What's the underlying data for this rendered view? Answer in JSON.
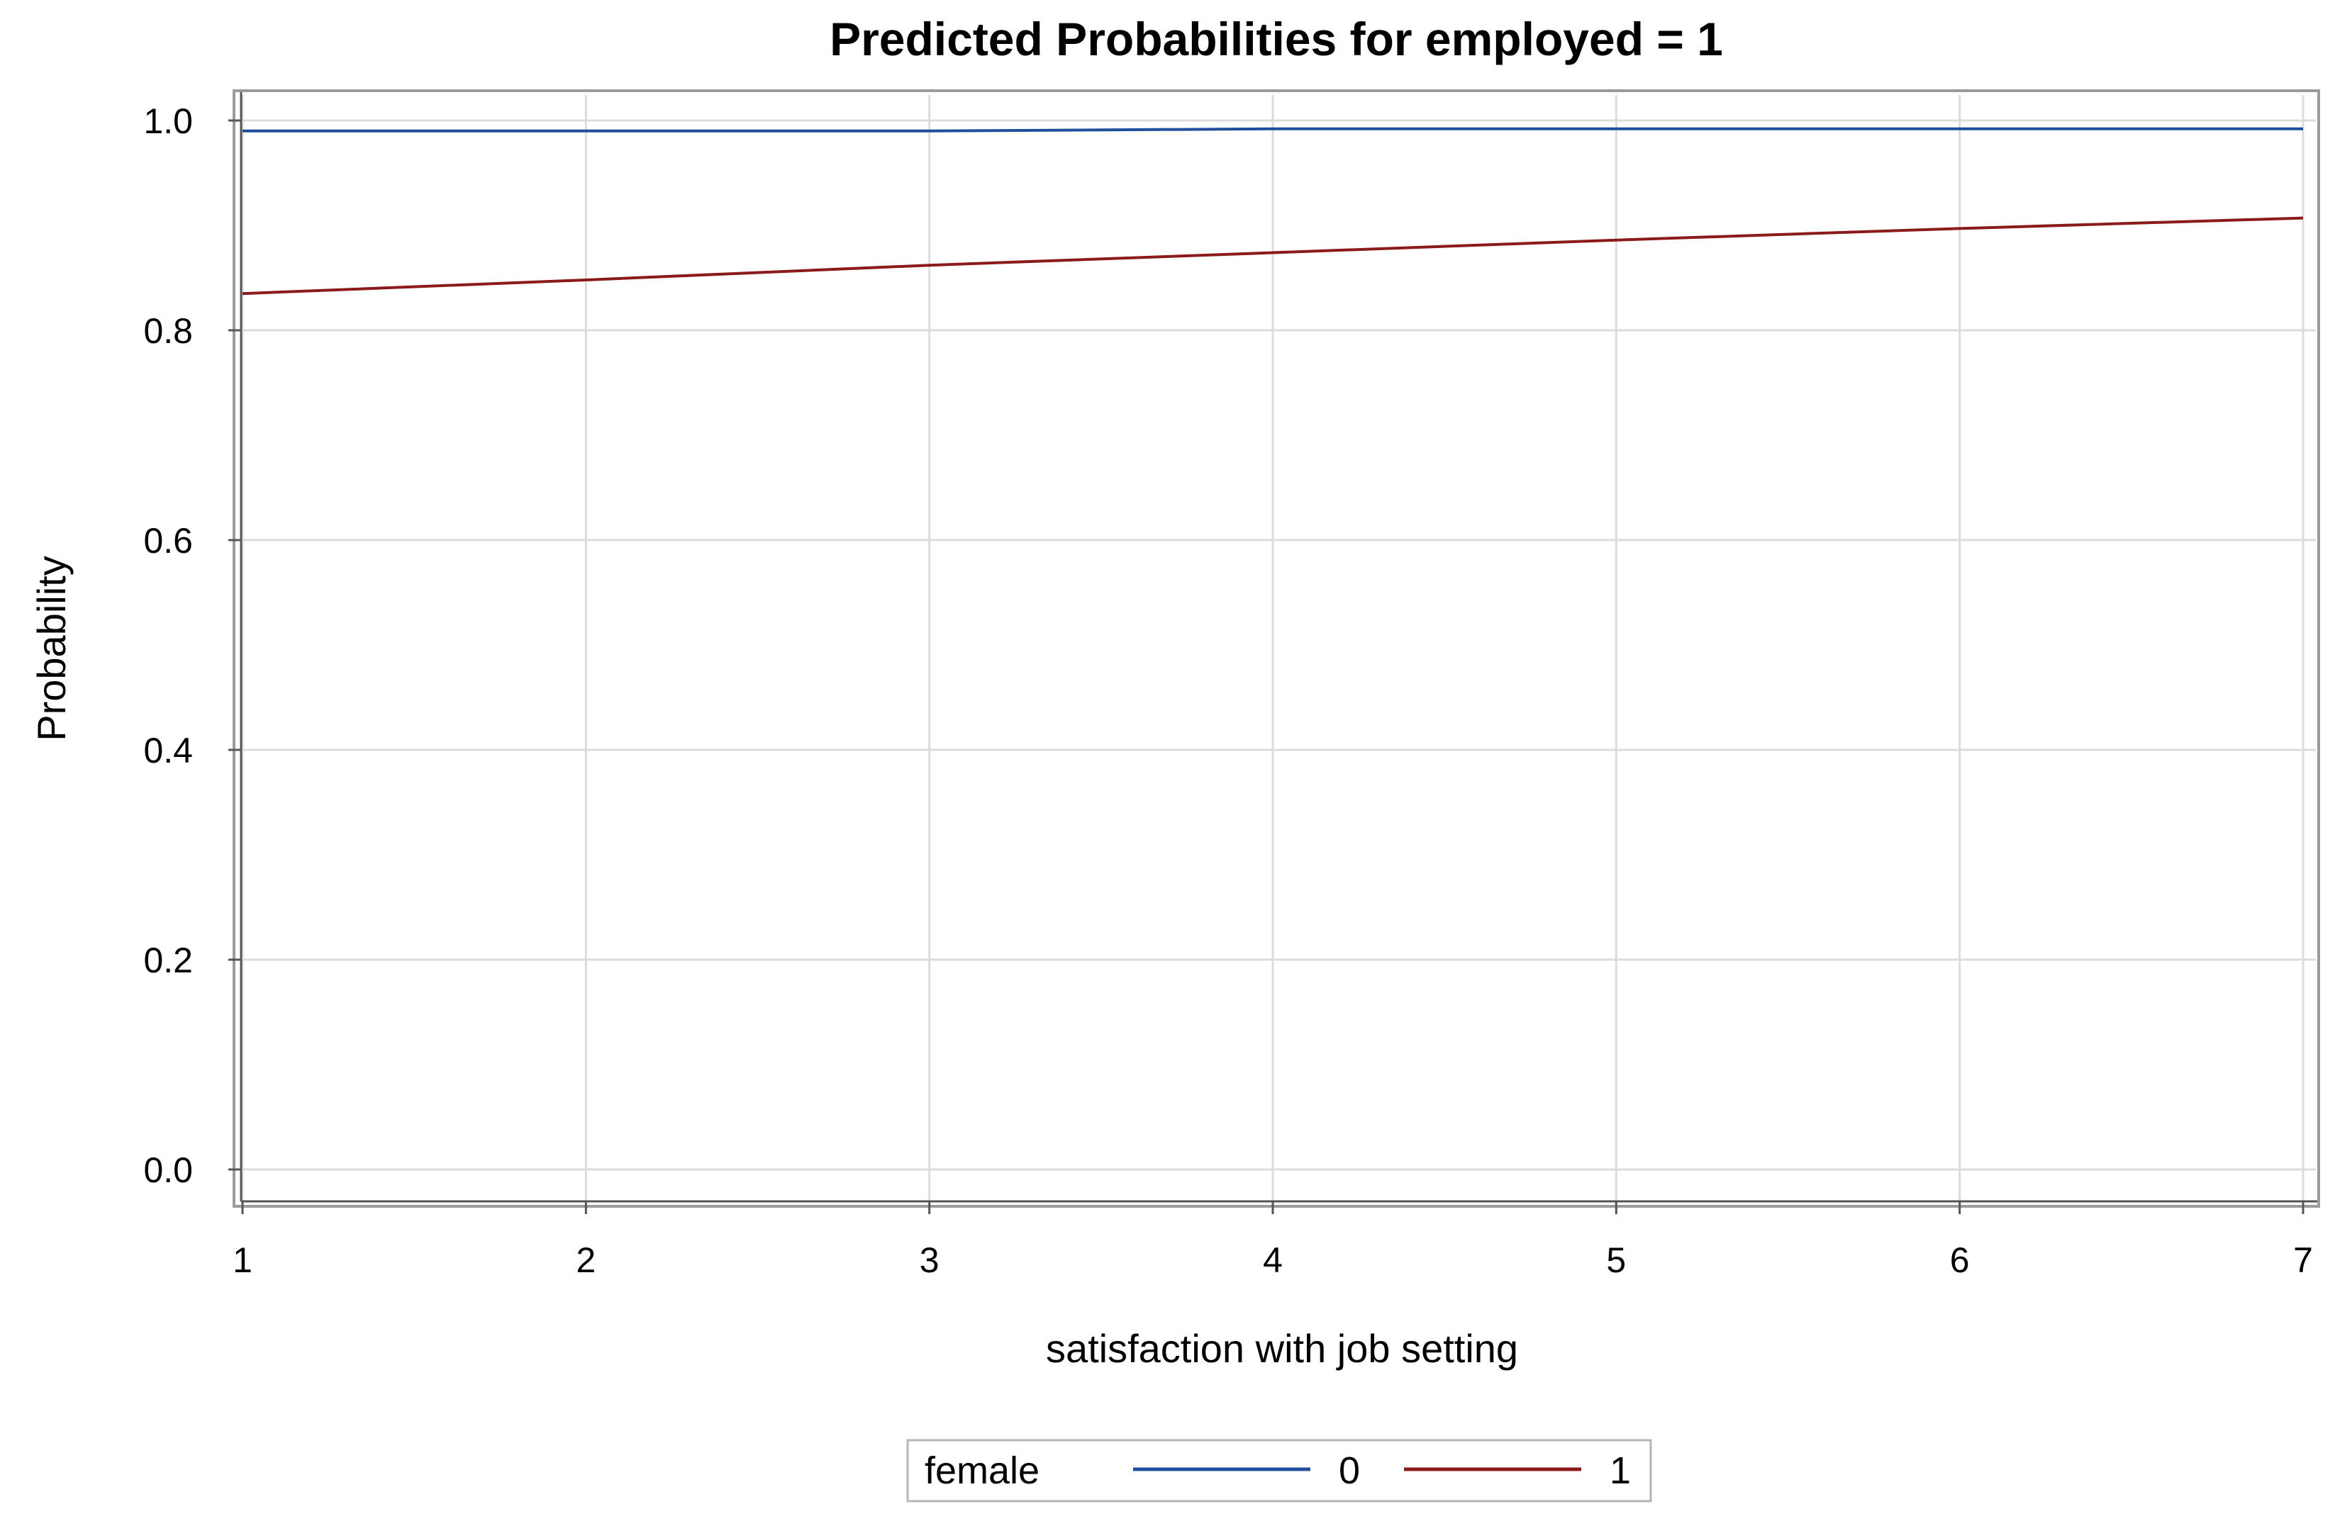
{
  "chart_data": {
    "type": "line",
    "title": "Predicted Probabilities for employed = 1",
    "xlabel": "satisfaction with job setting",
    "ylabel": "Probability",
    "xlim": [
      1,
      7
    ],
    "ylim": [
      0,
      1
    ],
    "x_ticks": [
      "1",
      "2",
      "3",
      "4",
      "5",
      "6",
      "7"
    ],
    "y_ticks": [
      "0.0",
      "0.2",
      "0.4",
      "0.6",
      "0.8",
      "1.0"
    ],
    "grid": true,
    "legend": {
      "title": "female",
      "position": "bottom-center"
    },
    "x": [
      1,
      2,
      3,
      4,
      5,
      6,
      7
    ],
    "series": [
      {
        "name": "0",
        "color": "#1f4e9c",
        "values": [
          0.99,
          0.99,
          0.99,
          0.992,
          0.992,
          0.992,
          0.992
        ]
      },
      {
        "name": "1",
        "color": "#8b1a1a",
        "values": [
          0.835,
          0.848,
          0.862,
          0.874,
          0.886,
          0.897,
          0.907
        ]
      }
    ]
  }
}
